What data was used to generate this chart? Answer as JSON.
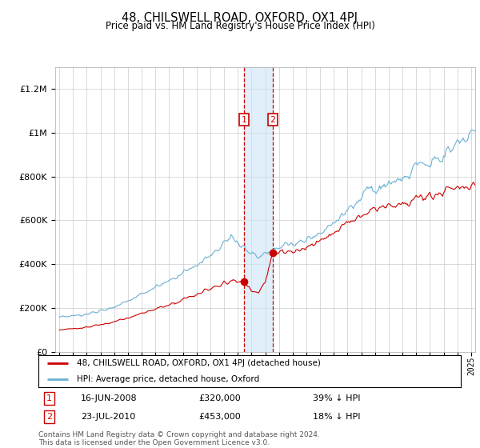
{
  "title": "48, CHILSWELL ROAD, OXFORD, OX1 4PJ",
  "subtitle": "Price paid vs. HM Land Registry's House Price Index (HPI)",
  "legend_line1": "48, CHILSWELL ROAD, OXFORD, OX1 4PJ (detached house)",
  "legend_line2": "HPI: Average price, detached house, Oxford",
  "sale1_date": "16-JUN-2008",
  "sale1_price": 320000,
  "sale1_label": "39% ↓ HPI",
  "sale2_date": "23-JUL-2010",
  "sale2_price": 453000,
  "sale2_label": "18% ↓ HPI",
  "footnote": "Contains HM Land Registry data © Crown copyright and database right 2024.\nThis data is licensed under the Open Government Licence v3.0.",
  "hpi_color": "#6ab0d4",
  "property_color": "#cc0000",
  "vline_color": "#cc0000",
  "shade_color": "#cce5f5",
  "marker_box_color": "#cc0000",
  "ylim": [
    0,
    1300000
  ],
  "yticks": [
    0,
    200000,
    400000,
    600000,
    800000,
    1000000,
    1200000
  ],
  "xlim_start": 1994.7,
  "xlim_end": 2025.3,
  "sale1_x": 2008.46,
  "sale2_x": 2010.56,
  "sale1_y": 320000,
  "sale2_y": 453000
}
